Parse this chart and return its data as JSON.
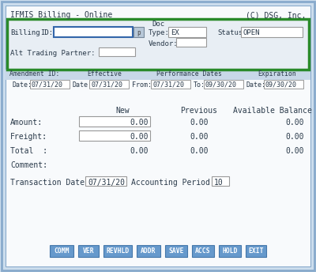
{
  "outer_bg": "#ccdded",
  "inner_bg": "#f0f4f8",
  "main_bg": "#ffffff",
  "outer_border_color": "#88aacc",
  "title_left": "IFMIS Billing - Online",
  "title_right": "(C) DSG, Inc.",
  "text_color": "#2a3a4a",
  "green_rect_color": "#2a8a2a",
  "doc_label": "Doc",
  "type_value": "EX",
  "status_value": "OPEN",
  "date1": "07/31/20",
  "date2": "07/31/20",
  "date3": "07/31/20",
  "date4": "09/30/20",
  "date5": "09/30/20",
  "col_new": "New",
  "col_prev": "Previous",
  "col_avail": "Available Balance",
  "transaction_date": "07/31/20",
  "accounting_value": "10",
  "buttons": [
    "COMM",
    "VER",
    "REVHLD",
    "ADDR",
    "SAVE",
    "ACCS",
    "HOLD",
    "EXIT"
  ],
  "button_color": "#6699cc",
  "button_text_color": "#ffffff",
  "amend_header_bg": "#c8d8e8",
  "field_active_border": "#3366aa",
  "field_border": "#999999",
  "search_btn_bg": "#b8c8d8"
}
